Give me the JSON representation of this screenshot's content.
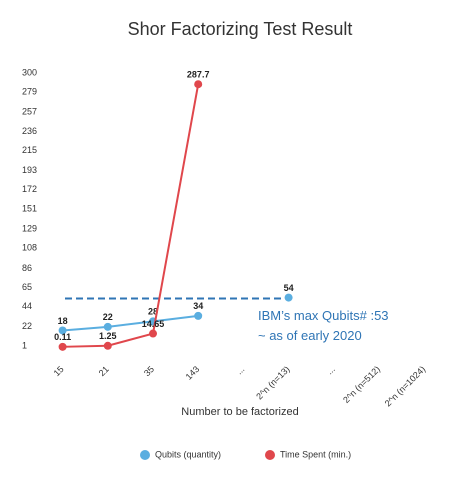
{
  "chart_data": {
    "type": "line",
    "title": "Shor Factorizing Test Result",
    "x_label": "Number to be factorized",
    "categories": [
      "15",
      "21",
      "35",
      "143",
      "...",
      "2^n (n=13)",
      "...",
      "2^n (n=512)",
      "2^n (n=1024)"
    ],
    "series": [
      {
        "name": "Qubits (quantity)",
        "color": "#5aaee0",
        "values": [
          18,
          22,
          28,
          34,
          null,
          54,
          null,
          null,
          null
        ]
      },
      {
        "name": "Time Spent (min.)",
        "color": "#e0474c",
        "values": [
          0.11,
          1.25,
          14.65,
          287.7,
          null,
          null,
          null,
          null,
          null
        ]
      }
    ],
    "ylim": [
      1,
      300
    ],
    "yticks": [
      1,
      22,
      44,
      65,
      86,
      108,
      129,
      151,
      172,
      193,
      215,
      236,
      257,
      279,
      300
    ],
    "threshold": {
      "value": 53,
      "color": "#2f75b5",
      "labels": [
        "IBM’s max Qubits# :53",
        "~ as of early 2020"
      ]
    },
    "legend": "bottom"
  }
}
